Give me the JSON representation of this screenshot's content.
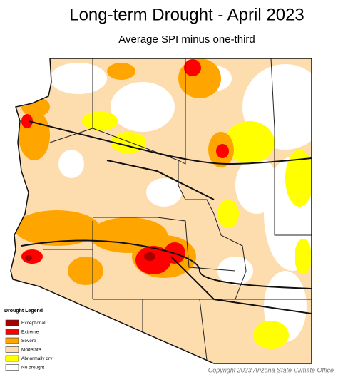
{
  "title": "Long-term Drought - April 2023",
  "subtitle": "Average SPI minus one-third",
  "legend": {
    "title": "Drought Legend",
    "items": [
      {
        "label": "Exceptional",
        "color": "#a80000"
      },
      {
        "label": "Extreme",
        "color": "#ff0000"
      },
      {
        "label": "Severe",
        "color": "#ffa500"
      },
      {
        "label": "Moderate",
        "color": "#fddcae"
      },
      {
        "label": "Abnormally dry",
        "color": "#ffff00"
      },
      {
        "label": "No drought",
        "color": "#ffffff"
      }
    ]
  },
  "copyright": "Copyright 2023 Arizona State Climate Office"
}
